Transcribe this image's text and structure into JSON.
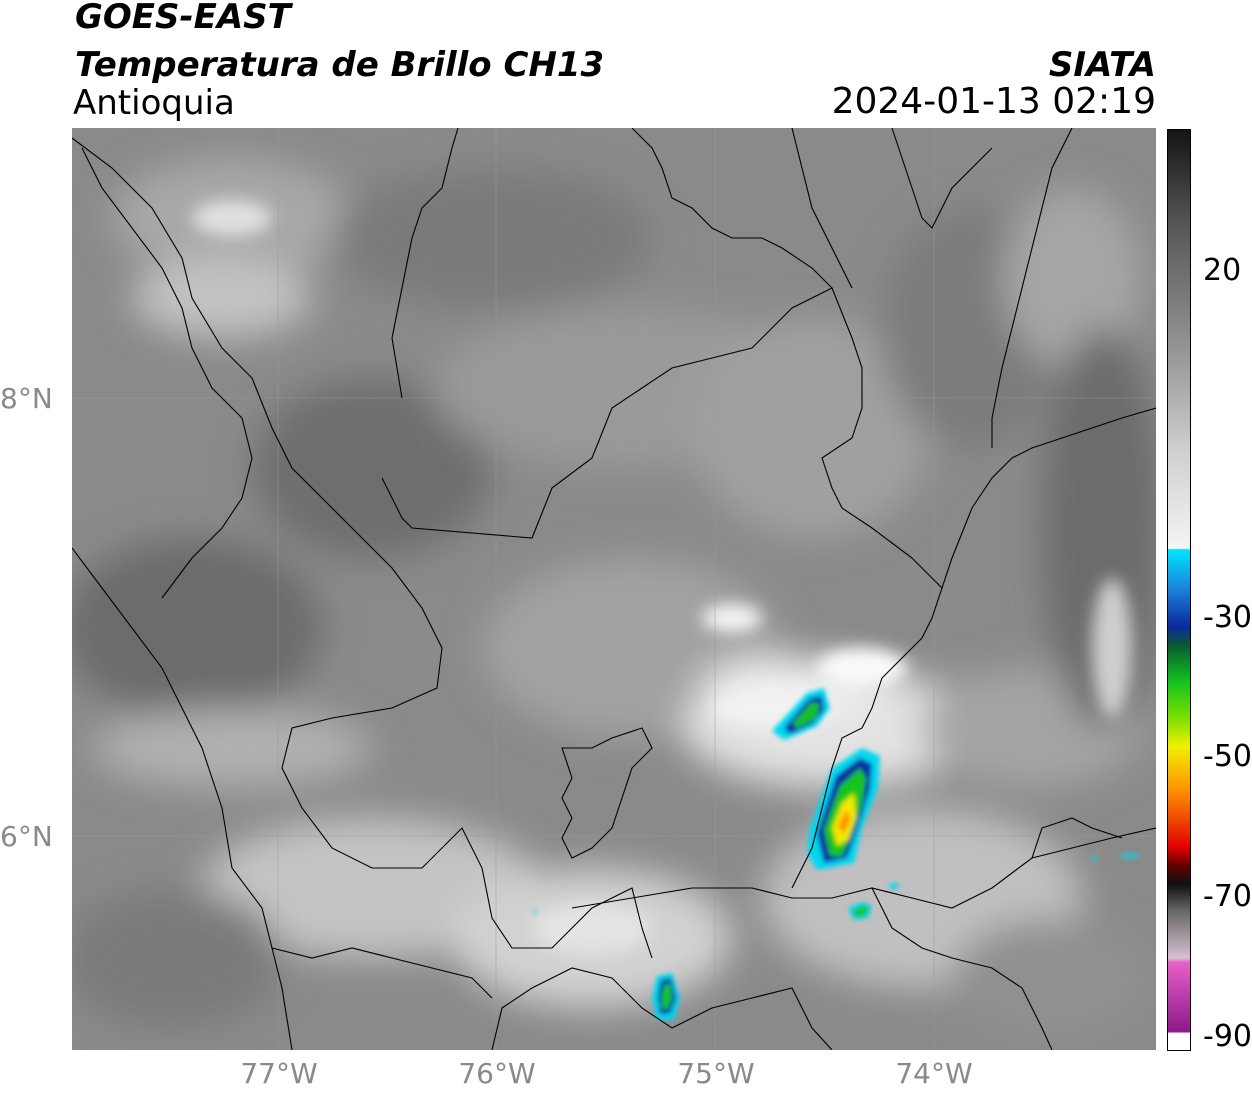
{
  "header": {
    "satellite": "GOES-EAST",
    "product": "Temperatura de Brillo CH13",
    "region": "Antioquia",
    "source": "SIATA",
    "datetime": "2024-01-13 02:19"
  },
  "axes": {
    "latitude_labels": [
      "8°N",
      "6°N"
    ],
    "longitude_labels": [
      "77°W",
      "76°W",
      "75°W",
      "74°W"
    ]
  },
  "colorbar": {
    "tick_labels": [
      "20",
      "-30",
      "-50",
      "-70",
      "-90"
    ],
    "colors": {
      "grayscale_top": "#141414",
      "grayscale_bottom": "#f2f2f2",
      "cyan": "#00e5ff",
      "blue": "#0a2a9e",
      "green": "#12c41e",
      "yellow": "#f0f000",
      "orange": "#ff8c00",
      "red": "#e00000",
      "black_band": "#111111",
      "pink": "#e85fc8",
      "purple": "#8a1a8a"
    }
  }
}
